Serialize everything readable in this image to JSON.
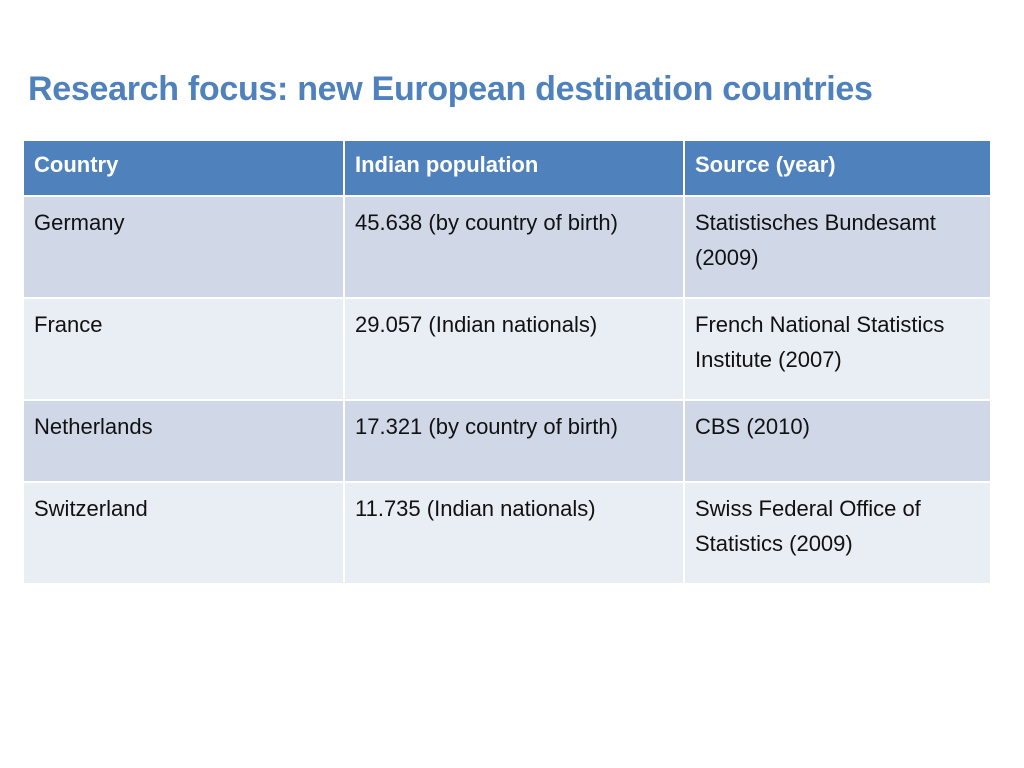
{
  "slide": {
    "title": "Research focus: new European destination countries"
  },
  "table": {
    "headers": [
      "Country",
      "Indian population",
      "Source (year)"
    ],
    "rows": [
      [
        "Germany",
        "45.638 (by country of birth)",
        "Statistisches Bundesamt (2009)"
      ],
      [
        "France",
        "29.057 (Indian nationals)",
        "French National Statistics Institute (2007)"
      ],
      [
        "Netherlands",
        "17.321 (by country of birth)",
        "CBS (2010)"
      ],
      [
        "Switzerland",
        "11.735 (Indian nationals)",
        "Swiss Federal Office of Statistics (2009)"
      ]
    ]
  },
  "colors": {
    "title": "#4f81bd",
    "header_bg": "#4f81bd",
    "row_dark": "#d0d8e8",
    "row_light": "#e9edf4"
  }
}
